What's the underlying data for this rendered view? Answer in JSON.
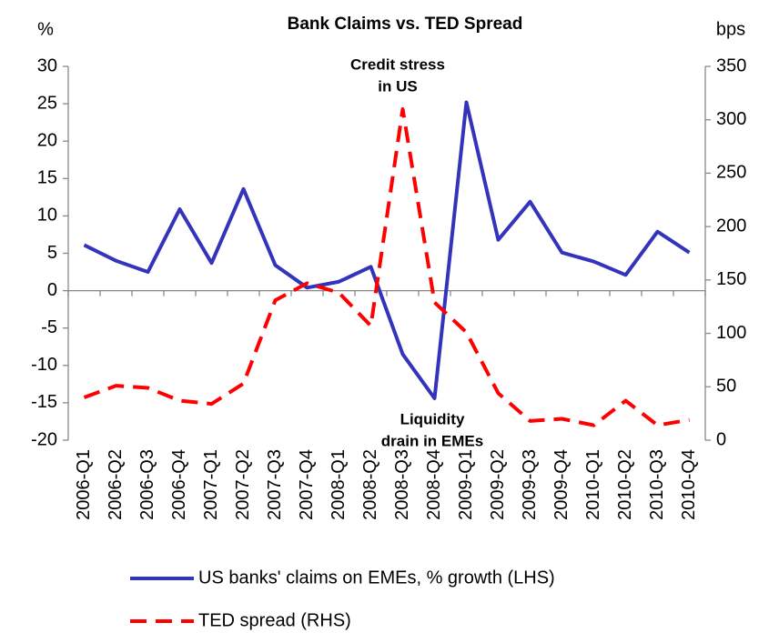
{
  "chart_data": {
    "type": "line",
    "title": "Bank Claims vs. TED Spread",
    "y_label": "%",
    "y2_label": "bps",
    "categories": [
      "2006-Q1",
      "2006-Q2",
      "2006-Q3",
      "2006-Q4",
      "2007-Q1",
      "2007-Q2",
      "2007-Q3",
      "2007-Q4",
      "2008-Q1",
      "2008-Q2",
      "2008-Q3",
      "2008-Q4",
      "2009-Q1",
      "2009-Q2",
      "2009-Q3",
      "2009-Q4",
      "2010-Q1",
      "2010-Q2",
      "2010-Q3",
      "2010-Q4"
    ],
    "series": [
      {
        "name": "US banks' claims on EMEs, % growth (LHS)",
        "color": "#3333bb",
        "dash": false,
        "axis": "y",
        "values": [
          6.1,
          4.0,
          2.5,
          10.9,
          3.7,
          13.6,
          3.4,
          0.4,
          1.2,
          3.2,
          -8.5,
          -14.4,
          25.2,
          6.8,
          11.9,
          5.1,
          3.9,
          2.1,
          7.9,
          5.1
        ]
      },
      {
        "name": "TED spread (RHS)",
        "color": "#ff0000",
        "dash": true,
        "axis": "y2",
        "values": [
          40,
          51,
          49,
          37,
          34,
          53,
          131,
          147,
          138,
          107,
          310,
          129,
          101,
          44,
          18,
          20,
          14,
          37,
          14,
          19
        ]
      }
    ],
    "annotations": [
      {
        "lines": [
          "Credit stress",
          "in US"
        ],
        "color": "#ff0000"
      },
      {
        "lines": [
          "Liquidity",
          "drain in EMEs"
        ],
        "color": "#3333bb"
      }
    ],
    "ylim": [
      -20,
      30
    ],
    "yticks": [
      -20,
      -15,
      -10,
      -5,
      0,
      5,
      10,
      15,
      20,
      25,
      30
    ],
    "y2lim": [
      0,
      350
    ],
    "y2ticks": [
      0,
      50,
      100,
      150,
      200,
      250,
      300,
      350
    ],
    "grid": false
  }
}
